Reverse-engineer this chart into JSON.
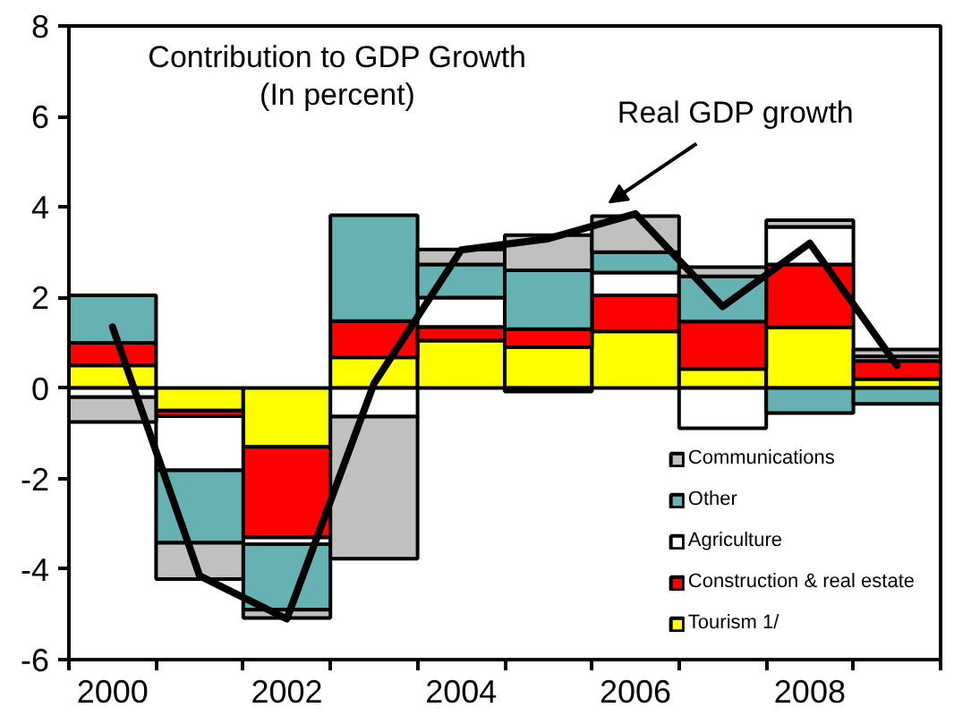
{
  "chart_data": {
    "type": "bar",
    "title": "Contribution to GDP Growth",
    "subtitle": "(In percent)",
    "categories": [
      "2000",
      null,
      "2002",
      null,
      "2004",
      null,
      "2006",
      null,
      "2008",
      null
    ],
    "stacked": true,
    "series": [
      {
        "name": "Tourism 1/",
        "color": "#ffff00",
        "values": [
          0.5,
          -0.5,
          -1.3,
          0.68,
          1.05,
          0.9,
          1.25,
          0.42,
          1.34,
          0.2
        ]
      },
      {
        "name": "Construction & real estate",
        "color": "#ff0000",
        "values": [
          0.5,
          -0.12,
          -2.0,
          0.8,
          0.3,
          0.4,
          0.8,
          1.05,
          1.39,
          0.4
        ]
      },
      {
        "name": "Agriculture",
        "color": "#ffffff",
        "values": [
          -0.2,
          -1.2,
          -0.15,
          -0.63,
          0.65,
          -0.08,
          0.5,
          -0.89,
          0.83,
          0.1
        ]
      },
      {
        "name": "Other",
        "color": "#66b2b2",
        "values": [
          1.05,
          -1.6,
          -1.45,
          2.34,
          0.73,
          1.3,
          0.45,
          1.0,
          -0.55,
          -0.35
        ]
      },
      {
        "name": "Communications",
        "color": "#c0c0c0",
        "values": [
          -0.55,
          -0.8,
          -0.18,
          -3.14,
          0.33,
          0.78,
          0.8,
          0.2,
          0.15,
          0.15
        ]
      },
      {
        "name": "Real GDP growth",
        "type": "line",
        "color": "#000000",
        "values": [
          1.35,
          -4.15,
          -5.1,
          0.1,
          3.05,
          3.3,
          3.85,
          1.8,
          3.2,
          0.5
        ]
      }
    ],
    "ylim": [
      -6,
      8
    ],
    "yticks": [
      -6,
      -4,
      -2,
      0,
      2,
      4,
      6,
      8
    ],
    "legend": "bottom right"
  }
}
